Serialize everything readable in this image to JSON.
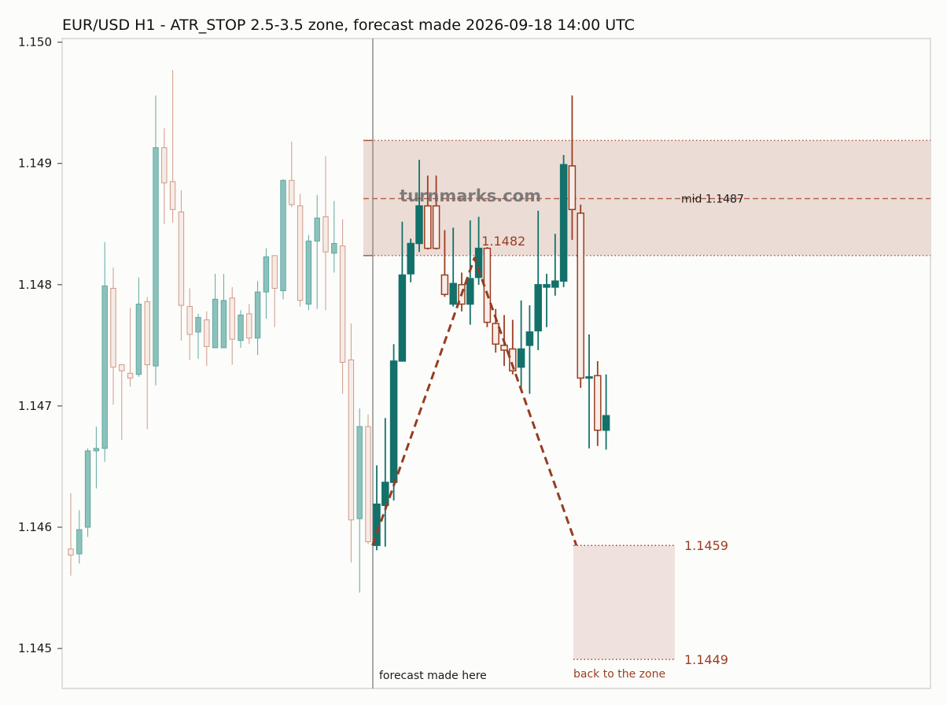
{
  "chart_data": {
    "type": "candlestick",
    "title": "EUR/USD H1 - ATR_STOP 2.5-3.5 zone, forecast made 2026-09-18 14:00 UTC",
    "watermark": "turnmarks.com",
    "y_ticks": [
      "1.145",
      "1.146",
      "1.147",
      "1.148",
      "1.149",
      "1.150"
    ],
    "ylim": [
      1.14467,
      1.15003
    ],
    "grid": false,
    "colors": {
      "up": "#13716a",
      "down": "#9a3e22",
      "history_up": "#5fa8a0",
      "history_down": "#cf9a88",
      "zone_fill": "#ecdcd6",
      "target_fill": "#efe2de",
      "path": "#963c22",
      "divider": "#888888",
      "frame": "#cccccc"
    },
    "history_candles": [
      {
        "o": 1.14582,
        "h": 1.14628,
        "l": 1.1456,
        "c": 1.14577
      },
      {
        "o": 1.14578,
        "h": 1.14614,
        "l": 1.1457,
        "c": 1.14598
      },
      {
        "o": 1.146,
        "h": 1.14665,
        "l": 1.14592,
        "c": 1.14663
      },
      {
        "o": 1.14663,
        "h": 1.14683,
        "l": 1.14632,
        "c": 1.14665
      },
      {
        "o": 1.14665,
        "h": 1.14835,
        "l": 1.14654,
        "c": 1.14799
      },
      {
        "o": 1.14797,
        "h": 1.14814,
        "l": 1.14701,
        "c": 1.14732
      },
      {
        "o": 1.14734,
        "h": 1.14734,
        "l": 1.14672,
        "c": 1.14729
      },
      {
        "o": 1.14727,
        "h": 1.14781,
        "l": 1.14716,
        "c": 1.14723
      },
      {
        "o": 1.14726,
        "h": 1.14806,
        "l": 1.14724,
        "c": 1.14784
      },
      {
        "o": 1.14786,
        "h": 1.1479,
        "l": 1.14681,
        "c": 1.14734
      },
      {
        "o": 1.14733,
        "h": 1.14956,
        "l": 1.14717,
        "c": 1.14913
      },
      {
        "o": 1.14913,
        "h": 1.14929,
        "l": 1.1485,
        "c": 1.14884
      },
      {
        "o": 1.14885,
        "h": 1.14977,
        "l": 1.14851,
        "c": 1.14862
      },
      {
        "o": 1.1486,
        "h": 1.14878,
        "l": 1.14754,
        "c": 1.14783
      },
      {
        "o": 1.14782,
        "h": 1.14797,
        "l": 1.14738,
        "c": 1.14759
      },
      {
        "o": 1.14761,
        "h": 1.14776,
        "l": 1.14739,
        "c": 1.14773
      },
      {
        "o": 1.14771,
        "h": 1.14778,
        "l": 1.14733,
        "c": 1.14749
      },
      {
        "o": 1.14748,
        "h": 1.14809,
        "l": 1.14748,
        "c": 1.14788
      },
      {
        "o": 1.14748,
        "h": 1.14809,
        "l": 1.14748,
        "c": 1.14787
      },
      {
        "o": 1.14789,
        "h": 1.14798,
        "l": 1.14734,
        "c": 1.14755
      },
      {
        "o": 1.14754,
        "h": 1.14779,
        "l": 1.14748,
        "c": 1.14775
      },
      {
        "o": 1.14776,
        "h": 1.14784,
        "l": 1.14751,
        "c": 1.14756
      },
      {
        "o": 1.14756,
        "h": 1.14803,
        "l": 1.14742,
        "c": 1.14794
      },
      {
        "o": 1.14794,
        "h": 1.1483,
        "l": 1.14772,
        "c": 1.14823
      },
      {
        "o": 1.14824,
        "h": 1.14824,
        "l": 1.14765,
        "c": 1.14797
      },
      {
        "o": 1.14795,
        "h": 1.14887,
        "l": 1.14788,
        "c": 1.14886
      },
      {
        "o": 1.14886,
        "h": 1.14918,
        "l": 1.14864,
        "c": 1.14866
      },
      {
        "o": 1.14865,
        "h": 1.14875,
        "l": 1.14782,
        "c": 1.14787
      },
      {
        "o": 1.14784,
        "h": 1.14841,
        "l": 1.14779,
        "c": 1.14836
      },
      {
        "o": 1.14836,
        "h": 1.14874,
        "l": 1.1478,
        "c": 1.14855
      },
      {
        "o": 1.14856,
        "h": 1.14906,
        "l": 1.14779,
        "c": 1.14827
      },
      {
        "o": 1.14826,
        "h": 1.14869,
        "l": 1.1481,
        "c": 1.14834
      },
      {
        "o": 1.14832,
        "h": 1.14854,
        "l": 1.1471,
        "c": 1.14736
      },
      {
        "o": 1.14738,
        "h": 1.14768,
        "l": 1.14571,
        "c": 1.14606
      },
      {
        "o": 1.14607,
        "h": 1.14698,
        "l": 1.14546,
        "c": 1.14683
      },
      {
        "o": 1.14683,
        "h": 1.14693,
        "l": 1.14586,
        "c": 1.14588
      }
    ],
    "forecast_candles": [
      {
        "o": 1.14585,
        "h": 1.14651,
        "l": 1.14581,
        "c": 1.14619
      },
      {
        "o": 1.14618,
        "h": 1.1469,
        "l": 1.14584,
        "c": 1.14637
      },
      {
        "o": 1.14637,
        "h": 1.14751,
        "l": 1.14622,
        "c": 1.14737
      },
      {
        "o": 1.14737,
        "h": 1.14852,
        "l": 1.14737,
        "c": 1.14808
      },
      {
        "o": 1.14809,
        "h": 1.14838,
        "l": 1.14802,
        "c": 1.14834
      },
      {
        "o": 1.14834,
        "h": 1.14903,
        "l": 1.14827,
        "c": 1.14865
      },
      {
        "o": 1.14865,
        "h": 1.1489,
        "l": 1.14829,
        "c": 1.1483
      },
      {
        "o": 1.14865,
        "h": 1.1489,
        "l": 1.14829,
        "c": 1.1483
      },
      {
        "o": 1.14808,
        "h": 1.14845,
        "l": 1.1479,
        "c": 1.14792
      },
      {
        "o": 1.14784,
        "h": 1.14847,
        "l": 1.14782,
        "c": 1.14801
      },
      {
        "o": 1.148,
        "h": 1.1481,
        "l": 1.14778,
        "c": 1.14784
      },
      {
        "o": 1.14784,
        "h": 1.14853,
        "l": 1.14767,
        "c": 1.14805
      },
      {
        "o": 1.14806,
        "h": 1.14856,
        "l": 1.148,
        "c": 1.1483
      },
      {
        "o": 1.1483,
        "h": 1.14831,
        "l": 1.14765,
        "c": 1.14769
      },
      {
        "o": 1.14768,
        "h": 1.1478,
        "l": 1.14744,
        "c": 1.14751
      },
      {
        "o": 1.1475,
        "h": 1.14775,
        "l": 1.14733,
        "c": 1.14746
      },
      {
        "o": 1.14747,
        "h": 1.14771,
        "l": 1.14726,
        "c": 1.14729
      },
      {
        "o": 1.14732,
        "h": 1.14787,
        "l": 1.14714,
        "c": 1.14747
      },
      {
        "o": 1.1475,
        "h": 1.14783,
        "l": 1.1471,
        "c": 1.14761
      },
      {
        "o": 1.14762,
        "h": 1.14861,
        "l": 1.14746,
        "c": 1.148
      },
      {
        "o": 1.14798,
        "h": 1.14809,
        "l": 1.14765,
        "c": 1.148
      },
      {
        "o": 1.14798,
        "h": 1.14842,
        "l": 1.14791,
        "c": 1.14803
      },
      {
        "o": 1.14803,
        "h": 1.14907,
        "l": 1.14798,
        "c": 1.14899
      },
      {
        "o": 1.14898,
        "h": 1.14956,
        "l": 1.14837,
        "c": 1.14862
      },
      {
        "o": 1.14859,
        "h": 1.14866,
        "l": 1.14715,
        "c": 1.14723
      },
      {
        "o": 1.14723,
        "h": 1.14759,
        "l": 1.14665,
        "c": 1.14724
      },
      {
        "o": 1.14725,
        "h": 1.14737,
        "l": 1.14667,
        "c": 1.1468
      },
      {
        "o": 1.1468,
        "h": 1.14726,
        "l": 1.14664,
        "c": 1.14692
      }
    ],
    "zone": {
      "top": 1.14919,
      "bottom": 1.14824,
      "mid": 1.14871,
      "mid_label": "mid 1.1487"
    },
    "path_points": [
      {
        "bar": -0.5,
        "price": 1.14585
      },
      {
        "bar": 11.5,
        "price": 1.14822
      },
      {
        "bar": 23.5,
        "price": 1.14585
      }
    ],
    "peak_label": "1.1482",
    "target_zone": {
      "top": 1.14585,
      "bottom": 1.14491,
      "top_label": "1.1459",
      "bottom_label": "1.1449",
      "caption": "back to the zone"
    },
    "divider_label": "forecast made here"
  }
}
